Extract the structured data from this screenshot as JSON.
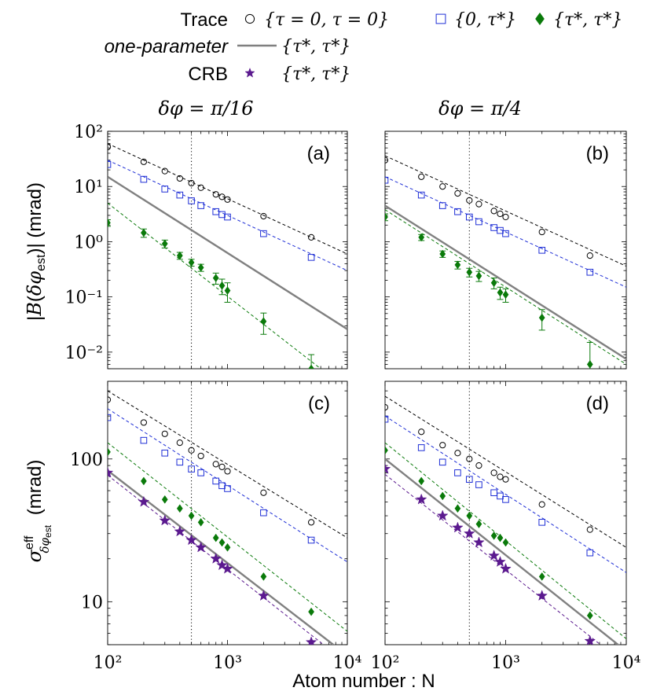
{
  "legend": {
    "rows": [
      {
        "label": "Trace",
        "italic": false,
        "entries": [
          {
            "marker": "circle",
            "color": "#000000",
            "text": "{τ = 0, τ = 0}"
          },
          {
            "marker": "square",
            "color": "#1f2fd6",
            "text": "{0, τ*}"
          },
          {
            "marker": "diamond",
            "color": "#0a7a0a",
            "text": "{τ*, τ*}"
          }
        ]
      },
      {
        "label": "one-parameter",
        "italic": true,
        "entries": [
          {
            "marker": "line",
            "color": "#808080",
            "text": "{τ*, τ*}"
          }
        ]
      },
      {
        "label": "CRB",
        "italic": false,
        "entries": [
          {
            "marker": "star",
            "color": "#5b1a8f",
            "text": "{τ*, τ*}"
          }
        ]
      }
    ]
  },
  "column_titles": [
    "δφ = π/16",
    "δφ = π/4"
  ],
  "xlabel": "Atom number : N",
  "ylabel_top": "|B(δφest)| (mrad)",
  "ylabel_bottom": "σ^eff δφest (mrad)",
  "colors": {
    "trace0": "#000000",
    "trace1": "#1f2fd6",
    "trace2": "#0a7a0a",
    "onep": "#808080",
    "crb": "#5b1a8f"
  },
  "chart_data": [
    {
      "id": "a",
      "panel_label": "(a)",
      "type": "scatter",
      "xscale": "log",
      "yscale": "log",
      "xlim": [
        100,
        10000
      ],
      "ylim": [
        0.005,
        100
      ],
      "yticks": [
        0.01,
        0.1,
        1,
        10,
        100
      ],
      "ytick_labels": [
        "10⁻²",
        "10⁻¹",
        "10⁰",
        "10¹",
        "10²"
      ],
      "vline_x": 500,
      "series": [
        {
          "marker": "circle",
          "color": "#000000",
          "x": [
            100,
            200,
            300,
            400,
            500,
            600,
            800,
            900,
            1000,
            2000,
            5000
          ],
          "y": [
            52,
            28,
            19,
            14,
            11.5,
            9.5,
            7.2,
            6.5,
            5.8,
            2.9,
            1.2
          ],
          "fit": [
            [
              100,
              60
            ],
            [
              10000,
              0.6
            ]
          ]
        },
        {
          "marker": "square",
          "color": "#1f2fd6",
          "x": [
            100,
            200,
            300,
            400,
            500,
            600,
            800,
            900,
            1000,
            2000,
            5000
          ],
          "y": [
            25,
            13.5,
            9,
            7,
            5.5,
            4.5,
            3.5,
            3.1,
            2.8,
            1.4,
            0.52
          ],
          "fit": [
            [
              100,
              30
            ],
            [
              10000,
              0.3
            ]
          ]
        },
        {
          "marker": "diamond",
          "color": "#0a7a0a",
          "x": [
            100,
            200,
            300,
            400,
            500,
            600,
            800,
            900,
            1000,
            2000,
            5000
          ],
          "y": [
            2.2,
            1.45,
            0.92,
            0.56,
            0.42,
            0.34,
            0.22,
            0.16,
            0.13,
            0.036,
            0.005
          ],
          "err": [
            0.3,
            0.25,
            0.15,
            0.08,
            0.06,
            0.05,
            0.05,
            0.05,
            0.05,
            0.015,
            0.004
          ],
          "fit": [
            [
              100,
              5
            ],
            [
              6000,
              0.005
            ]
          ]
        },
        {
          "marker": "line",
          "color": "#808080",
          "fit": [
            [
              100,
              15
            ],
            [
              10000,
              0.026
            ]
          ]
        }
      ]
    },
    {
      "id": "b",
      "panel_label": "(b)",
      "type": "scatter",
      "xscale": "log",
      "yscale": "log",
      "xlim": [
        100,
        10000
      ],
      "ylim": [
        0.005,
        100
      ],
      "yticks": [
        0.01,
        0.1,
        1,
        10,
        100
      ],
      "ytick_labels": [],
      "vline_x": 500,
      "series": [
        {
          "marker": "circle",
          "color": "#000000",
          "x": [
            100,
            200,
            300,
            400,
            500,
            600,
            800,
            900,
            1000,
            2000,
            5000
          ],
          "y": [
            30,
            15,
            10,
            7.5,
            5.6,
            4.8,
            3.6,
            3.2,
            2.8,
            1.5,
            0.56
          ],
          "fit": [
            [
              100,
              36
            ],
            [
              10000,
              0.36
            ]
          ]
        },
        {
          "marker": "square",
          "color": "#1f2fd6",
          "x": [
            100,
            200,
            300,
            400,
            500,
            600,
            800,
            900,
            1000,
            2000,
            5000
          ],
          "y": [
            13,
            7,
            4.5,
            3.5,
            2.8,
            2.3,
            1.8,
            1.6,
            1.4,
            0.7,
            0.28
          ],
          "fit": [
            [
              100,
              15
            ],
            [
              10000,
              0.15
            ]
          ]
        },
        {
          "marker": "diamond",
          "color": "#0a7a0a",
          "x": [
            100,
            200,
            300,
            400,
            500,
            600,
            800,
            900,
            1000,
            2000,
            5000
          ],
          "y": [
            2.8,
            1.2,
            0.6,
            0.38,
            0.28,
            0.24,
            0.18,
            0.12,
            0.11,
            0.042,
            0.006
          ],
          "err": [
            0.4,
            0.15,
            0.08,
            0.06,
            0.05,
            0.05,
            0.04,
            0.03,
            0.03,
            0.017,
            0.009
          ],
          "fit": [
            [
              100,
              3.8
            ],
            [
              10000,
              0.006
            ]
          ]
        },
        {
          "marker": "line",
          "color": "#808080",
          "fit": [
            [
              100,
              4.5
            ],
            [
              10000,
              0.0075
            ]
          ]
        }
      ]
    },
    {
      "id": "c",
      "panel_label": "(c)",
      "type": "scatter",
      "xscale": "log",
      "yscale": "log",
      "xlim": [
        100,
        10000
      ],
      "ylim": [
        5,
        350
      ],
      "yticks": [
        10,
        100
      ],
      "ytick_labels": [
        "10",
        "100"
      ],
      "xticks": [
        100,
        1000,
        10000
      ],
      "xtick_labels": [
        "10²",
        "10³",
        "10⁴"
      ],
      "vline_x": 500,
      "series": [
        {
          "marker": "circle",
          "color": "#000000",
          "x": [
            100,
            200,
            300,
            400,
            500,
            600,
            800,
            900,
            1000,
            2000,
            5000
          ],
          "y": [
            260,
            180,
            150,
            130,
            115,
            105,
            92,
            88,
            82,
            58,
            36
          ],
          "fit": [
            [
              100,
              300
            ],
            [
              10000,
              28
            ]
          ]
        },
        {
          "marker": "square",
          "color": "#1f2fd6",
          "x": [
            100,
            200,
            300,
            400,
            500,
            600,
            800,
            900,
            1000,
            2000,
            5000
          ],
          "y": [
            195,
            135,
            110,
            95,
            85,
            80,
            70,
            65,
            62,
            42,
            27
          ],
          "fit": [
            [
              100,
              225
            ],
            [
              10000,
              19
            ]
          ]
        },
        {
          "marker": "diamond",
          "color": "#0a7a0a",
          "x": [
            100,
            200,
            300,
            400,
            500,
            600,
            800,
            900,
            1000,
            2000,
            5000
          ],
          "y": [
            112,
            70,
            52,
            45,
            40,
            36,
            28,
            26,
            24,
            15,
            8.5
          ],
          "fit": [
            [
              100,
              130
            ],
            [
              10000,
              6.2
            ]
          ]
        },
        {
          "marker": "line",
          "color": "#808080",
          "fit": [
            [
              100,
              83
            ],
            [
              10000,
              4.2
            ]
          ]
        },
        {
          "marker": "star",
          "color": "#5b1a8f",
          "x": [
            100,
            200,
            300,
            400,
            500,
            600,
            800,
            900,
            1000,
            2000,
            5000
          ],
          "y": [
            80,
            50,
            37,
            31,
            27,
            24,
            20,
            18,
            17,
            11,
            5.2
          ],
          "fit": [
            [
              100,
              77
            ],
            [
              10000,
              3.7
            ]
          ]
        }
      ]
    },
    {
      "id": "d",
      "panel_label": "(d)",
      "type": "scatter",
      "xscale": "log",
      "yscale": "log",
      "xlim": [
        100,
        10000
      ],
      "ylim": [
        5,
        350
      ],
      "yticks": [
        10,
        100
      ],
      "ytick_labels": [],
      "xticks": [
        100,
        1000,
        10000
      ],
      "xtick_labels": [
        "10²",
        "10³",
        "10⁴"
      ],
      "vline_x": 500,
      "series": [
        {
          "marker": "circle",
          "color": "#000000",
          "x": [
            100,
            200,
            300,
            400,
            500,
            600,
            800,
            900,
            1000,
            2000,
            5000
          ],
          "y": [
            230,
            155,
            125,
            110,
            100,
            90,
            80,
            75,
            72,
            48,
            32
          ],
          "fit": [
            [
              100,
              275
            ],
            [
              10000,
              24
            ]
          ]
        },
        {
          "marker": "square",
          "color": "#1f2fd6",
          "x": [
            100,
            200,
            300,
            400,
            500,
            600,
            800,
            900,
            1000,
            2000,
            5000
          ],
          "y": [
            190,
            120,
            95,
            80,
            72,
            66,
            58,
            55,
            52,
            36,
            22
          ],
          "fit": [
            [
              100,
              200
            ],
            [
              10000,
              16
            ]
          ]
        },
        {
          "marker": "diamond",
          "color": "#0a7a0a",
          "x": [
            100,
            200,
            300,
            400,
            500,
            600,
            800,
            900,
            1000,
            2000,
            5000
          ],
          "y": [
            115,
            70,
            55,
            45,
            40,
            35,
            29,
            28,
            26,
            15,
            8
          ],
          "fit": [
            [
              100,
              130
            ],
            [
              10000,
              5.5
            ]
          ]
        },
        {
          "marker": "line",
          "color": "#808080",
          "fit": [
            [
              100,
              100
            ],
            [
              10000,
              4.5
            ]
          ]
        },
        {
          "marker": "star",
          "color": "#5b1a8f",
          "x": [
            100,
            200,
            300,
            400,
            500,
            600,
            800,
            900,
            1000,
            2000,
            5000
          ],
          "y": [
            85,
            52,
            40,
            33,
            30,
            26,
            21,
            19,
            17,
            11,
            5.3
          ],
          "fit": [
            [
              100,
              78
            ],
            [
              10000,
              3.6
            ]
          ]
        }
      ]
    }
  ]
}
